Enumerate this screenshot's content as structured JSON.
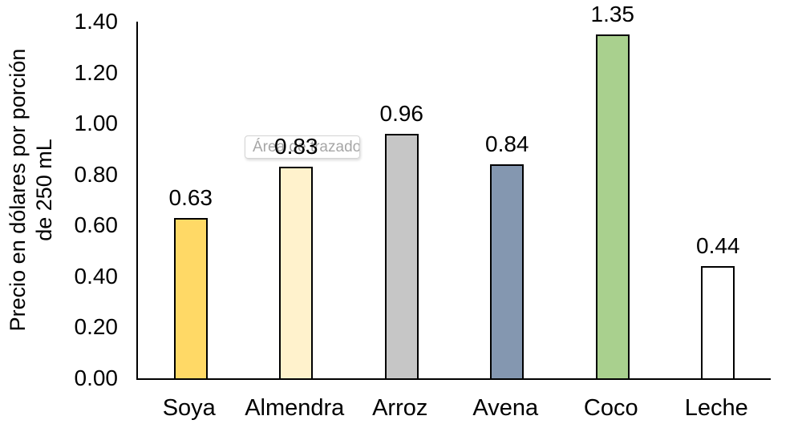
{
  "chart_data": {
    "type": "bar",
    "title": "",
    "categories": [
      "Soya",
      "Almendra",
      "Arroz",
      "Avena",
      "Coco",
      "Leche"
    ],
    "values": [
      0.63,
      0.83,
      0.96,
      0.84,
      1.35,
      0.44
    ],
    "value_labels": [
      "0.63",
      "0.83",
      "0.96",
      "0.84",
      "1.35",
      "0.44"
    ],
    "bar_colors": [
      "#FFD966",
      "#FFF2CC",
      "#C6C6C6",
      "#8497B0",
      "#A9D08E",
      "#FFFFFF"
    ],
    "bar_border_color": "#000000",
    "axis_color": "#000000",
    "xlabel": "",
    "ylabel": "Precio en dólares por porción de 250 mL",
    "ylabel_lines": [
      "Precio en dólares por porción",
      "de 250 mL"
    ],
    "ylim": [
      0,
      1.4
    ],
    "y_ticks": [
      "0.00",
      "0.20",
      "0.40",
      "0.60",
      "0.80",
      "1.00",
      "1.20",
      "1.40"
    ],
    "grid": "off",
    "legend": "none"
  },
  "tooltip": {
    "text": "Área de trazado"
  }
}
